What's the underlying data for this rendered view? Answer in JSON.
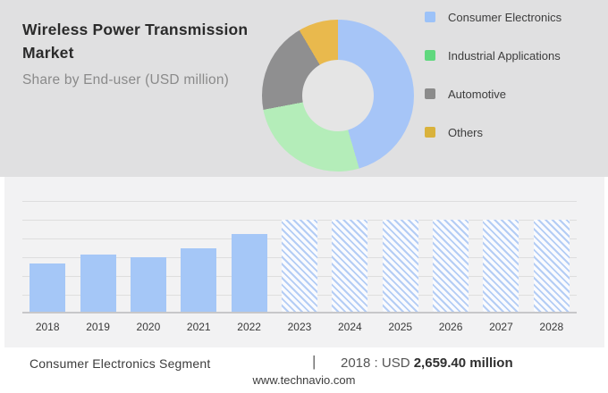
{
  "header": {
    "title": "Wireless Power Transmission Market",
    "subtitle": "Share by End-user (USD million)"
  },
  "legend": {
    "position": "right",
    "items": [
      {
        "label": "Consumer Electronics",
        "color": "#9cc2f8"
      },
      {
        "label": "Industrial Applications",
        "color": "#60d87e"
      },
      {
        "label": "Automotive",
        "color": "#8b8b8b"
      },
      {
        "label": "Others",
        "color": "#d9b23c"
      }
    ]
  },
  "chart_data": [
    {
      "type": "pie",
      "donut": true,
      "title": "Share by End-user (USD million)",
      "labels": [
        "Consumer Electronics",
        "Industrial Applications",
        "Automotive",
        "Others"
      ],
      "values": [
        45.5,
        26.5,
        19.5,
        8.5
      ],
      "units": "percent share, estimated from arc angles",
      "colors": [
        "#a6c5f7",
        "#b4edb9",
        "#8f8f90",
        "#e9b94d"
      ],
      "start_angle_deg": 0,
      "direction": "clockwise",
      "legend_position": "right"
    },
    {
      "type": "bar",
      "categories": [
        "2018",
        "2019",
        "2020",
        "2021",
        "2022",
        "2023",
        "2024",
        "2025",
        "2026",
        "2027",
        "2028"
      ],
      "values": [
        2659.4,
        3130,
        2990,
        3470,
        4230,
        4990,
        4990,
        4990,
        4990,
        4990,
        4990
      ],
      "units": "USD million",
      "title": "",
      "xlabel": "",
      "ylabel": "",
      "ylim": [
        0,
        6000
      ],
      "gridline_step": 1000,
      "grid": true,
      "forecast_from_index": 5,
      "bar_color": "#a5c7f7",
      "forecast_style": "diagonal-hatch",
      "forecast_bg": "#fafbfe",
      "hatch_color": "#b4cdf5"
    }
  ],
  "footer": {
    "segment": "Consumer Electronics Segment",
    "separator": "|",
    "metric_prefix": "2018 : USD",
    "metric_value": "2,659.40 million",
    "website": "www.technavio.com"
  },
  "colors": {
    "page_bg": "#ffffff",
    "header_bg": "#e0e0e1",
    "card_bg": "#f2f2f3",
    "donut_hole": "#e5e5e5",
    "gridline": "#dedede",
    "axis": "#c7c7c9",
    "title_text": "#2b2b2b",
    "subtitle_text": "#8a8a8a",
    "label_text": "#3a3a3a"
  }
}
